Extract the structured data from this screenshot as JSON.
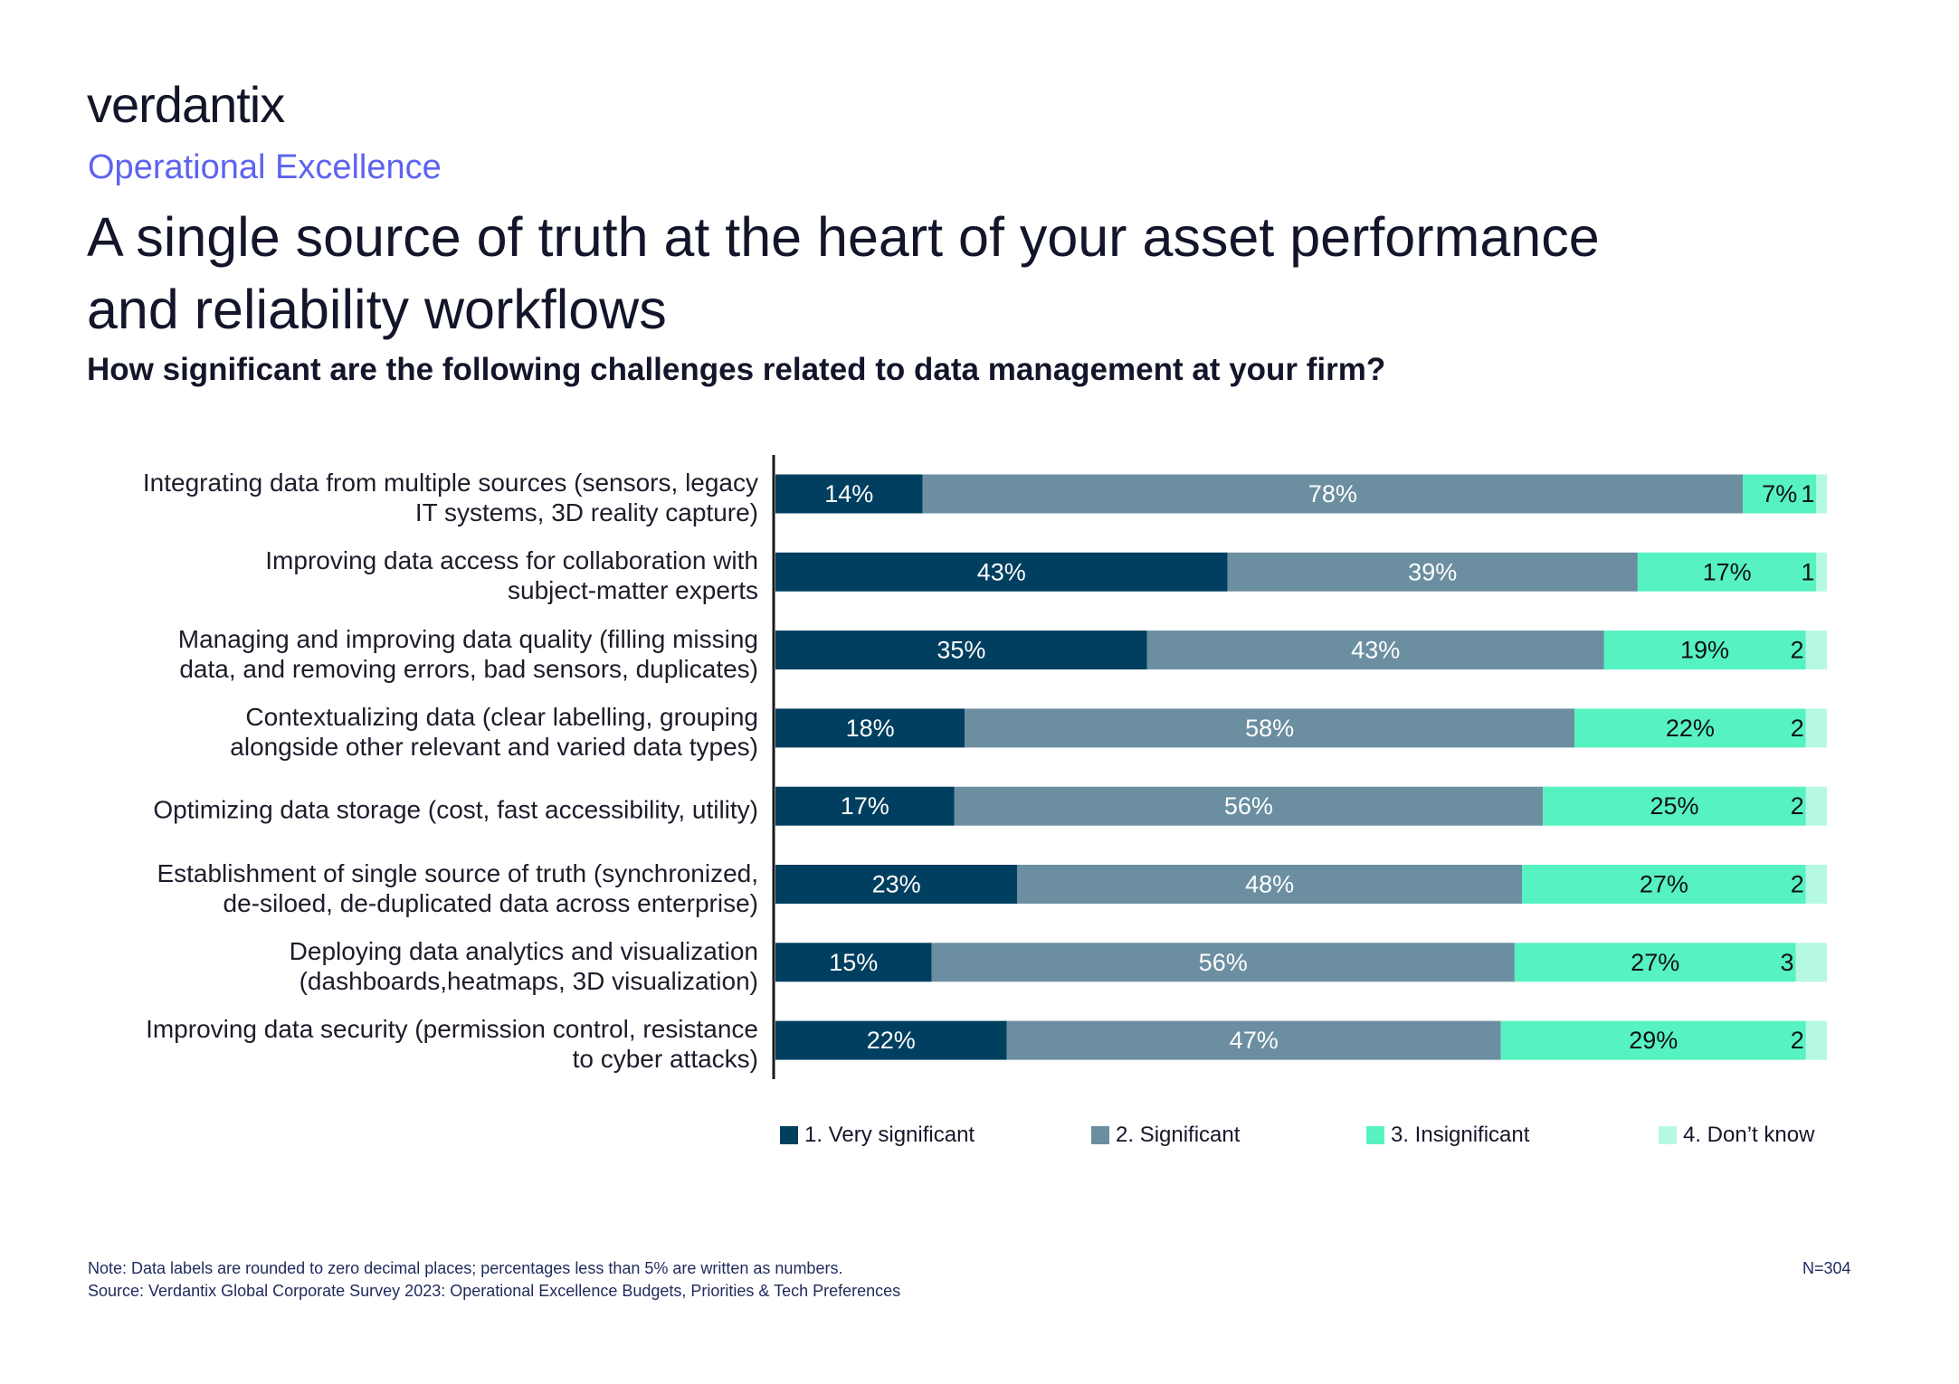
{
  "brand": {
    "logo": "verdantix",
    "section": "Operational Excellence"
  },
  "header": {
    "title_line1": "A single source of truth at the heart of your asset performance",
    "title_line2": "and reliability workflows",
    "question": "How significant are the following challenges related to data management at your firm?"
  },
  "colors": {
    "very_significant": "#003f5f",
    "significant": "#6b8ea1",
    "insignificant": "#56f2c2",
    "dont_know": "#b5f9e2",
    "accent": "#5d63f0"
  },
  "chart_data": {
    "type": "bar",
    "orientation": "horizontal",
    "stacked": true,
    "title": "How significant are the following challenges related to data management at your firm?",
    "xlabel": "",
    "ylabel": "",
    "grid": false,
    "legend_position": "bottom",
    "categories": [
      [
        "Integrating data from multiple sources (sensors, legacy",
        "IT systems, 3D reality capture)"
      ],
      [
        "Improving data access for collaboration with",
        "subject-matter experts"
      ],
      [
        "Managing and improving data quality (filling missing",
        "data, and removing errors, bad sensors, duplicates)"
      ],
      [
        "Contextualizing data (clear labelling, grouping",
        "alongside other relevant and varied data types)"
      ],
      [
        "Optimizing data storage (cost, fast accessibility, utility)"
      ],
      [
        "Establishment of single source of truth (synchronized,",
        "de-siloed, de-duplicated data across enterprise)"
      ],
      [
        "Deploying data analytics and visualization",
        "(dashboards,heatmaps, 3D visualization)"
      ],
      [
        "Improving data security (permission control, resistance",
        "to cyber attacks)"
      ]
    ],
    "series": [
      {
        "name": "1. Very significant",
        "values": [
          14,
          43,
          35,
          18,
          17,
          23,
          15,
          22
        ],
        "labels": [
          "14%",
          "43%",
          "35%",
          "18%",
          "17%",
          "23%",
          "15%",
          "22%"
        ]
      },
      {
        "name": "2. Significant",
        "values": [
          78,
          39,
          43,
          58,
          56,
          48,
          56,
          47
        ],
        "labels": [
          "78%",
          "39%",
          "43%",
          "58%",
          "56%",
          "48%",
          "56%",
          "47%"
        ]
      },
      {
        "name": "3. Insignificant",
        "values": [
          7,
          17,
          19,
          22,
          25,
          27,
          27,
          29
        ],
        "labels": [
          "7%",
          "17%",
          "19%",
          "22%",
          "25%",
          "27%",
          "27%",
          "29%"
        ]
      },
      {
        "name": "4. Don’t know",
        "values": [
          1,
          1,
          2,
          2,
          2,
          2,
          3,
          2
        ],
        "labels": [
          "1",
          "1",
          "2",
          "2",
          "2",
          "2",
          "3",
          "2"
        ]
      }
    ],
    "xlim": [
      0,
      100
    ]
  },
  "legend": [
    {
      "label": "1. Very significant"
    },
    {
      "label": "2. Significant"
    },
    {
      "label": "3. Insignificant"
    },
    {
      "label": "4. Don’t know"
    }
  ],
  "footer": {
    "note": "Note: Data labels are rounded to zero decimal places; percentages less than 5% are written as numbers.",
    "source": "Source: Verdantix Global Corporate Survey 2023: Operational Excellence Budgets, Priorities & Tech Preferences",
    "sample_size": "N=304"
  }
}
